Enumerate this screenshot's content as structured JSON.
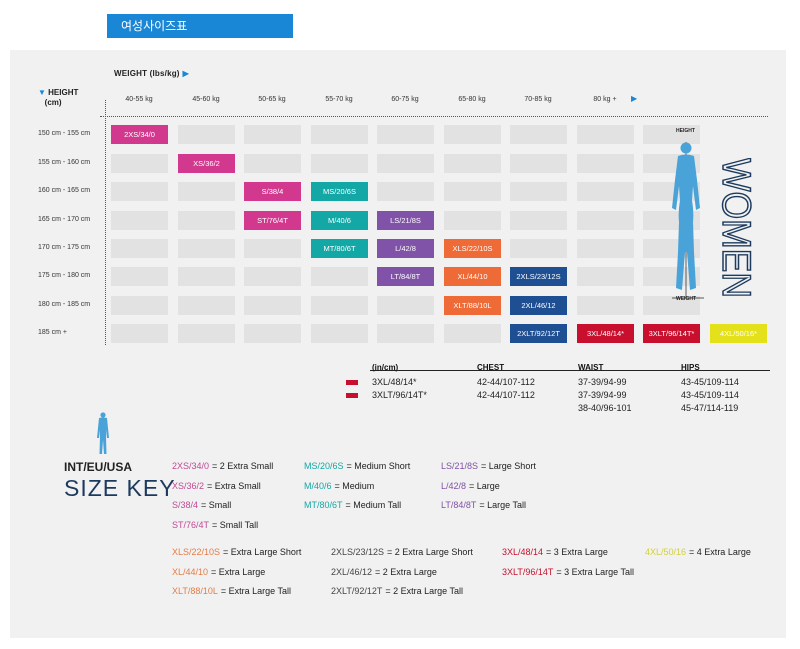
{
  "title": "여성사이즈표",
  "weight_label": "WEIGHT (lbs/kg)",
  "height_label_1": "HEIGHT",
  "height_label_2": "(cm)",
  "weight_columns": [
    "40-55 kg",
    "45-60 kg",
    "50-65 kg",
    "55-70 kg",
    "60-75 kg",
    "65-80 kg",
    "70-85 kg",
    "80 kg +"
  ],
  "height_rows": [
    "150 cm - 155 cm",
    "155 cm - 160 cm",
    "160 cm - 165 cm",
    "165 cm - 170 cm",
    "170 cm - 175 cm",
    "175 cm - 180 cm",
    "180 cm - 185 cm",
    "185 cm +"
  ],
  "figure_labels": {
    "height": "HEIGHT",
    "weight": "WEIGHT"
  },
  "women_text": "WOMEN",
  "sizes": [
    {
      "label": "2XS/34/0",
      "row": 0,
      "col": 0,
      "color": "#d3388f"
    },
    {
      "label": "XS/36/2",
      "row": 1,
      "col": 1,
      "color": "#d3388f"
    },
    {
      "label": "S/38/4",
      "row": 2,
      "col": 2,
      "color": "#d3388f"
    },
    {
      "label": "MS/20/6S",
      "row": 2,
      "col": 3,
      "color": "#13a8a5"
    },
    {
      "label": "ST/76/4T",
      "row": 3,
      "col": 2,
      "color": "#d3388f"
    },
    {
      "label": "M/40/6",
      "row": 3,
      "col": 3,
      "color": "#13a8a5"
    },
    {
      "label": "LS/21/8S",
      "row": 3,
      "col": 4,
      "color": "#8052a8"
    },
    {
      "label": "MT/80/6T",
      "row": 4,
      "col": 3,
      "color": "#13a8a5"
    },
    {
      "label": "L/42/8",
      "row": 4,
      "col": 4,
      "color": "#8052a8"
    },
    {
      "label": "XLS/22/10S",
      "row": 4,
      "col": 5,
      "color": "#ee6a36"
    },
    {
      "label": "LT/84/8T",
      "row": 5,
      "col": 4,
      "color": "#8052a8"
    },
    {
      "label": "XL/44/10",
      "row": 5,
      "col": 5,
      "color": "#ee6a36"
    },
    {
      "label": "2XLS/23/12S",
      "row": 5,
      "col": 6,
      "color": "#1f4f93"
    },
    {
      "label": "XLT/88/10L",
      "row": 6,
      "col": 5,
      "color": "#ee6a36"
    },
    {
      "label": "2XL/46/12",
      "row": 6,
      "col": 6,
      "color": "#1f4f93"
    },
    {
      "label": "2XLT/92/12T",
      "row": 7,
      "col": 6,
      "color": "#1f4f93"
    },
    {
      "label": "3XL/48/14*",
      "row": 7,
      "col": 7,
      "color": "#c8102e"
    },
    {
      "label": "3XLT/96/14T*",
      "row": 7,
      "col": 8,
      "color": "#c8102e"
    },
    {
      "label": "4XL/50/16*",
      "row": 7,
      "col": 9,
      "color": "#e4e11b"
    }
  ],
  "table": {
    "headers": [
      "(in/cm)",
      "CHEST",
      "WAIST",
      "HIPS"
    ],
    "rows": [
      {
        "size": "3XL/48/14*",
        "chest": "42-44/107-112",
        "waist": "37-39/94-99",
        "hips": "43-45/109-114"
      },
      {
        "size": "3XLT/96/14T*",
        "chest": "42-44/107-112",
        "waist": "37-39/94-99",
        "hips": "43-45/109-114"
      },
      {
        "size": "",
        "chest": "",
        "waist": "38-40/96-101",
        "hips": "45-47/114-119"
      }
    ]
  },
  "key_title_1": "INT/EU/USA",
  "key_title_2": "SIZE KEY",
  "key": [
    {
      "code": "2XS/34/0",
      "desc": "= 2 Extra Small",
      "color": "#c04a93"
    },
    {
      "code": "XS/36/2",
      "desc": "= Extra Small",
      "color": "#c04a93"
    },
    {
      "code": "S/38/4",
      "desc": "= Small",
      "color": "#c04a93"
    },
    {
      "code": "ST/76/4T",
      "desc": "= Small Tall",
      "color": "#c04a93"
    },
    {
      "code": "MS/20/6S",
      "desc": "= Medium Short",
      "color": "#13a8a5"
    },
    {
      "code": "M/40/6",
      "desc": "= Medium",
      "color": "#13a8a5"
    },
    {
      "code": "MT/80/6T",
      "desc": "= Medium Tall",
      "color": "#13a8a5"
    },
    {
      "code": "LS/21/8S",
      "desc": "= Large Short",
      "color": "#8052a8"
    },
    {
      "code": "L/42/8",
      "desc": "= Large",
      "color": "#8052a8"
    },
    {
      "code": "LT/84/8T",
      "desc": "= Large Tall",
      "color": "#8052a8"
    },
    {
      "code": "XLS/22/10S",
      "desc": "= Extra Large Short",
      "color": "#e47c45"
    },
    {
      "code": "XL/44/10",
      "desc": "= Extra Large",
      "color": "#e47c45"
    },
    {
      "code": "XLT/88/10L",
      "desc": "= Extra Large Tall",
      "color": "#e47c45"
    },
    {
      "code": "2XLS/23/12S",
      "desc": "= 2 Extra Large Short",
      "color": "#444"
    },
    {
      "code": "2XL/46/12",
      "desc": "= 2 Extra Large",
      "color": "#444"
    },
    {
      "code": "2XLT/92/12T",
      "desc": "= 2 Extra Large Tall",
      "color": "#444"
    },
    {
      "code": "3XL/48/14",
      "desc": "= 3 Extra Large",
      "color": "#c8102e"
    },
    {
      "code": "3XLT/96/14T",
      "desc": "= 3 Extra Large Tall",
      "color": "#c8102e"
    },
    {
      "code": "4XL/50/16",
      "desc": "= 4 Extra Large",
      "color": "#d4cf3a"
    }
  ]
}
